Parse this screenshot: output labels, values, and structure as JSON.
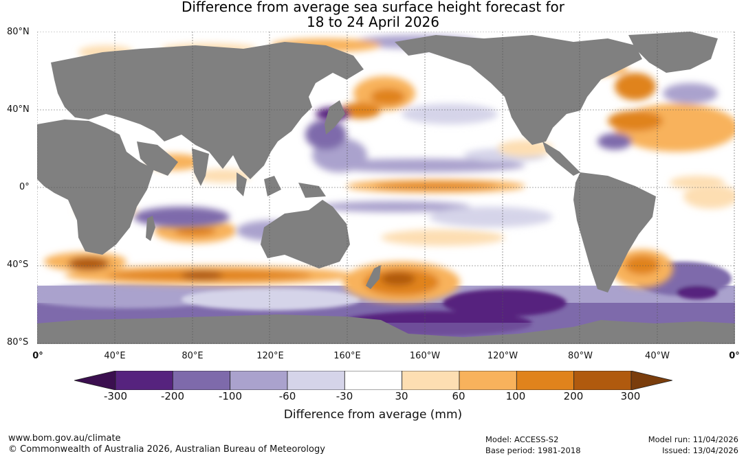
{
  "title": {
    "line1": "Difference from average sea surface height forecast for",
    "line2": "18 to 24 April 2026"
  },
  "map": {
    "lat_labels": [
      "80°N",
      "40°N",
      "0°",
      "40°S",
      "80°S"
    ],
    "lon_labels": [
      "0°",
      "40°E",
      "80°E",
      "120°E",
      "160°E",
      "160°W",
      "120°W",
      "80°W",
      "40°W",
      "0°"
    ],
    "land_color": "#808080",
    "ocean_base_color": "#ffffff",
    "grid_color": "#555555"
  },
  "colorbar": {
    "title": "Difference from average (mm)",
    "ticks": [
      "-300",
      "-200",
      "-100",
      "-60",
      "-30",
      "30",
      "60",
      "100",
      "200",
      "300"
    ],
    "colors": [
      "#3b0f4f",
      "#56237e",
      "#7e6aab",
      "#aaa2cd",
      "#d5d4e9",
      "#ffffff",
      "#fddeb2",
      "#f8b25c",
      "#e0831c",
      "#b05a0e",
      "#7a3d0c"
    ]
  },
  "footer": {
    "website": "www.bom.gov.au/climate",
    "copyright": "© Commonwealth of Australia 2026, Australian Bureau of Meteorology",
    "model": "Model: ACCESS-S2",
    "base_period": "Base period: 1981-2018",
    "model_run": "Model run: 11/04/2026",
    "issued": "Issued: 13/04/2026"
  }
}
